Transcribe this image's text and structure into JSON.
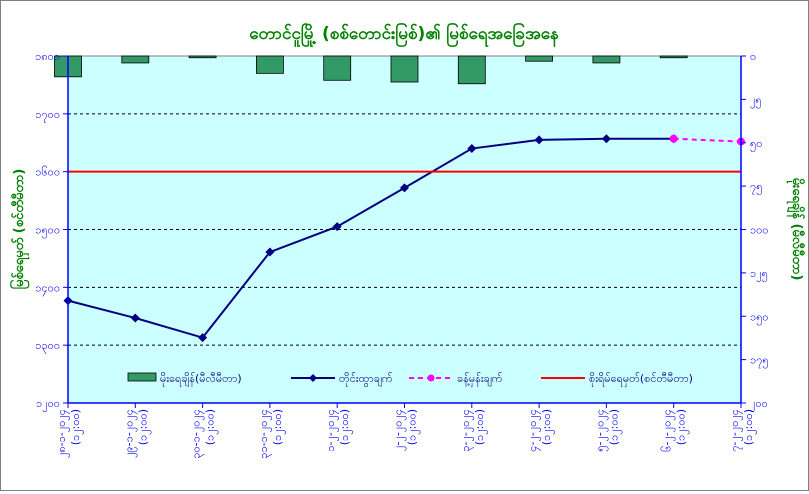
{
  "chart_data": {
    "type": "line",
    "title": "တောင်ငူမြို့ (စစ်တောင်းမြစ်)၏ မြစ်ရေအခြေအနေ",
    "ylabel_left": "မြစ်ရေမှတ် (စင်တီမီတာ)",
    "ylabel_right": "မိုးရေချိန် (မီလီမီတာ)",
    "categories": [
      "၂၈-၁-၂၀၂၄ (၁၂:၀၀)",
      "၂၉-၁-၂၀၂၄ (၁၂:၀၀)",
      "၃၀-၁-၂၀၂၄ (၁၂:၀၀)",
      "၃၁-၁-၂၀၂၄ (၁၂:၀၀)",
      "၁-၂-၂၀၂၄ (၁၂:၀၀)",
      "၂-၂-၂၀၂၄ (၁၂:၀၀)",
      "၃-၂-၂၀၂၄ (၁၂:၀၀)",
      "၄-၂-၂၀၂၄ (၁၂:၀၀)",
      "၅-၂-၂၀၂၄ (၁၂:၀၀)",
      "၆-၂-၂၀၂၄ (၁၂:၀၀)",
      "၇-၂-၂၀၂၄ (၁၂:၀၀)"
    ],
    "left_axis": {
      "min": 1200,
      "max": 1800,
      "step": 100,
      "tick_labels": [
        "၁၂၀၀",
        "၁၃၀၀",
        "၁၄၀၀",
        "၁၅၀၀",
        "၁၆၀၀",
        "၁၇၀၀",
        "၁၈၀၀"
      ]
    },
    "right_axis": {
      "min": 0,
      "max": 200,
      "step": 25,
      "reversed": true,
      "tick_labels": [
        "၀",
        "၂၅",
        "၅၀",
        "၇၅",
        "၁၀၀",
        "၁၂၅",
        "၁၅၀",
        "၁၇၅",
        "၂၀၀"
      ]
    },
    "series": [
      {
        "name": "မိုးရေချိန်(မီလီမီတာ)",
        "kind": "bar",
        "axis": "right",
        "color": "#339966",
        "values": [
          12,
          4,
          1,
          10,
          14,
          15,
          16,
          3,
          4,
          1,
          null
        ]
      },
      {
        "name": "တိုင်းထွာချက်",
        "kind": "line",
        "axis": "left",
        "color": "#000080",
        "marker": "diamond",
        "values": [
          1377,
          1347,
          1313,
          1461,
          1505,
          1572,
          1640,
          1655,
          1657,
          1657,
          null
        ]
      },
      {
        "name": "ခန့်မှန်းချက်",
        "kind": "line",
        "axis": "left",
        "color": "#ff00ff",
        "marker": "circle",
        "dashed": true,
        "values": [
          null,
          null,
          null,
          null,
          null,
          null,
          null,
          null,
          null,
          1657,
          1652
        ]
      },
      {
        "name": "စိုးရိမ်ရေမှတ်(စင်တီမီတာ)",
        "kind": "hline",
        "axis": "left",
        "color": "#ff0000",
        "value": 1600
      }
    ],
    "grid": true,
    "legend": "bottom-inside"
  }
}
